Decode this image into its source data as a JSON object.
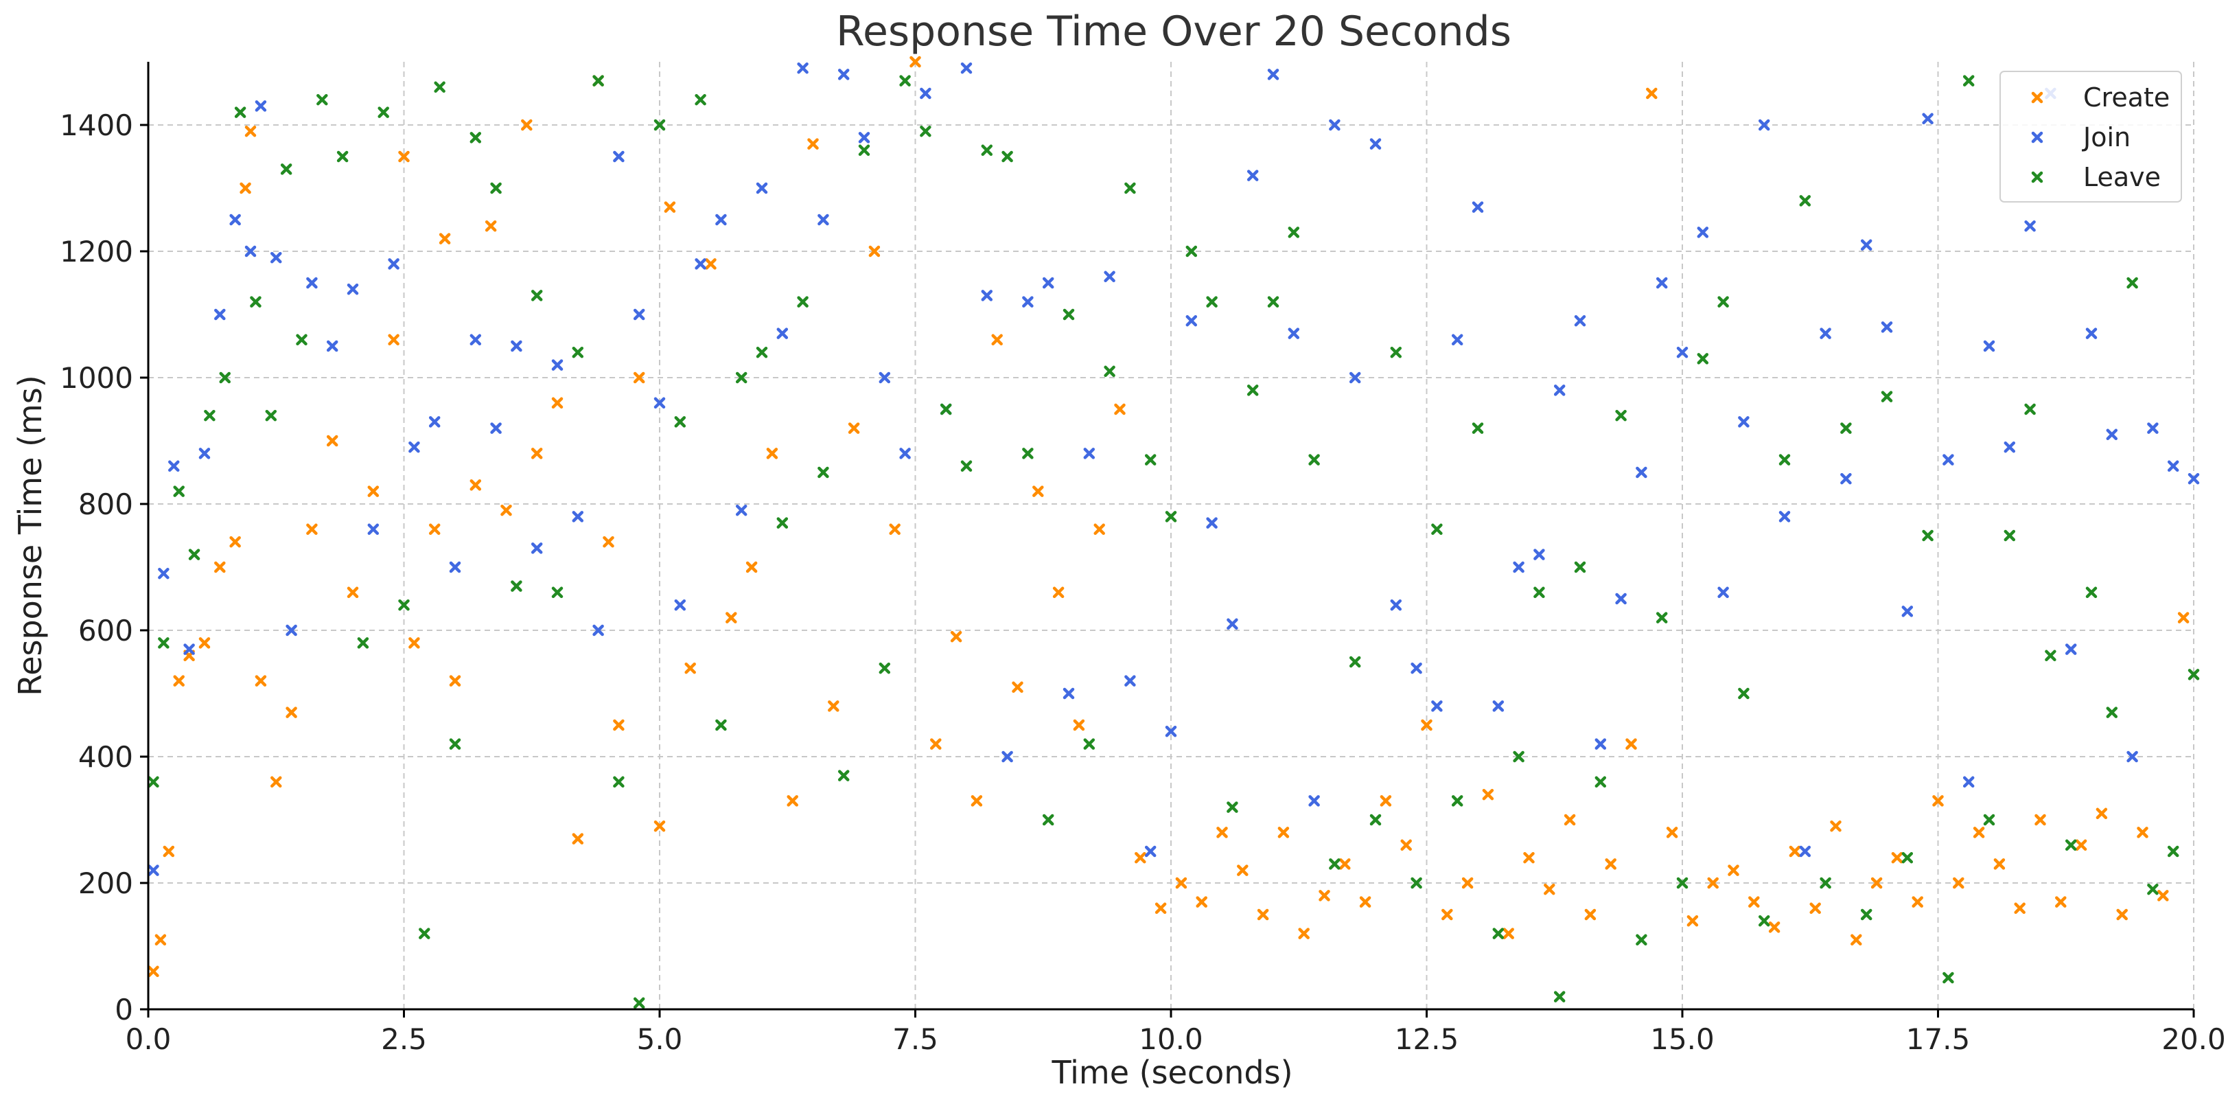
{
  "chart_data": {
    "type": "scatter",
    "title": "Response Time Over 20 Seconds",
    "xlabel": "Time (seconds)",
    "ylabel": "Response Time (ms)",
    "xlim": [
      0,
      20
    ],
    "ylim": [
      0,
      1500
    ],
    "xticks": [
      "0.0",
      "2.5",
      "5.0",
      "7.5",
      "10.0",
      "12.5",
      "15.0",
      "17.5",
      "20.0"
    ],
    "yticks": [
      "0",
      "200",
      "400",
      "600",
      "800",
      "1000",
      "1200",
      "1400"
    ],
    "grid": true,
    "legend_position": "top-right",
    "marker": "x",
    "series": [
      {
        "name": "Create",
        "color": "#ff8c00",
        "points": [
          [
            0.05,
            60
          ],
          [
            0.12,
            110
          ],
          [
            0.2,
            250
          ],
          [
            0.3,
            520
          ],
          [
            0.4,
            560
          ],
          [
            0.55,
            580
          ],
          [
            0.7,
            700
          ],
          [
            0.85,
            740
          ],
          [
            0.95,
            1300
          ],
          [
            1.0,
            1390
          ],
          [
            1.1,
            520
          ],
          [
            1.25,
            360
          ],
          [
            1.4,
            470
          ],
          [
            1.6,
            760
          ],
          [
            1.8,
            900
          ],
          [
            2.0,
            660
          ],
          [
            2.2,
            820
          ],
          [
            2.4,
            1060
          ],
          [
            2.5,
            1350
          ],
          [
            2.6,
            580
          ],
          [
            2.8,
            760
          ],
          [
            2.9,
            1220
          ],
          [
            3.0,
            520
          ],
          [
            3.2,
            830
          ],
          [
            3.35,
            1240
          ],
          [
            3.5,
            790
          ],
          [
            3.7,
            1400
          ],
          [
            3.8,
            880
          ],
          [
            4.0,
            960
          ],
          [
            4.2,
            270
          ],
          [
            4.4,
            1470
          ],
          [
            4.5,
            740
          ],
          [
            4.6,
            450
          ],
          [
            4.8,
            1000
          ],
          [
            5.0,
            290
          ],
          [
            5.1,
            1270
          ],
          [
            5.3,
            540
          ],
          [
            5.5,
            1180
          ],
          [
            5.7,
            620
          ],
          [
            5.9,
            700
          ],
          [
            6.1,
            880
          ],
          [
            6.3,
            330
          ],
          [
            6.5,
            1370
          ],
          [
            6.7,
            480
          ],
          [
            6.9,
            920
          ],
          [
            7.1,
            1200
          ],
          [
            7.3,
            760
          ],
          [
            7.5,
            1500
          ],
          [
            7.7,
            420
          ],
          [
            7.9,
            590
          ],
          [
            8.1,
            330
          ],
          [
            8.3,
            1060
          ],
          [
            8.5,
            510
          ],
          [
            8.7,
            820
          ],
          [
            8.9,
            660
          ],
          [
            9.1,
            450
          ],
          [
            9.3,
            760
          ],
          [
            9.5,
            950
          ],
          [
            9.7,
            240
          ],
          [
            9.9,
            160
          ],
          [
            10.1,
            200
          ],
          [
            10.3,
            170
          ],
          [
            10.5,
            280
          ],
          [
            10.7,
            220
          ],
          [
            10.9,
            150
          ],
          [
            11.1,
            280
          ],
          [
            11.3,
            120
          ],
          [
            11.5,
            180
          ],
          [
            11.7,
            230
          ],
          [
            11.9,
            170
          ],
          [
            12.1,
            330
          ],
          [
            12.3,
            260
          ],
          [
            12.5,
            450
          ],
          [
            12.7,
            150
          ],
          [
            12.9,
            200
          ],
          [
            13.1,
            340
          ],
          [
            13.3,
            120
          ],
          [
            13.5,
            240
          ],
          [
            13.7,
            190
          ],
          [
            13.9,
            300
          ],
          [
            14.1,
            150
          ],
          [
            14.3,
            230
          ],
          [
            14.5,
            420
          ],
          [
            14.7,
            1450
          ],
          [
            14.9,
            280
          ],
          [
            15.1,
            140
          ],
          [
            15.3,
            200
          ],
          [
            15.5,
            220
          ],
          [
            15.7,
            170
          ],
          [
            15.9,
            130
          ],
          [
            16.1,
            250
          ],
          [
            16.3,
            160
          ],
          [
            16.5,
            290
          ],
          [
            16.7,
            110
          ],
          [
            16.9,
            200
          ],
          [
            17.1,
            240
          ],
          [
            17.3,
            170
          ],
          [
            17.5,
            330
          ],
          [
            17.7,
            200
          ],
          [
            17.9,
            280
          ],
          [
            18.1,
            230
          ],
          [
            18.3,
            160
          ],
          [
            18.5,
            300
          ],
          [
            18.7,
            170
          ],
          [
            18.9,
            260
          ],
          [
            19.1,
            310
          ],
          [
            19.3,
            150
          ],
          [
            19.5,
            280
          ],
          [
            19.7,
            180
          ],
          [
            19.9,
            620
          ]
        ]
      },
      {
        "name": "Join",
        "color": "#4169e1",
        "points": [
          [
            0.05,
            220
          ],
          [
            0.15,
            690
          ],
          [
            0.25,
            860
          ],
          [
            0.4,
            570
          ],
          [
            0.55,
            880
          ],
          [
            0.7,
            1100
          ],
          [
            0.85,
            1250
          ],
          [
            1.0,
            1200
          ],
          [
            1.1,
            1430
          ],
          [
            1.25,
            1190
          ],
          [
            1.4,
            600
          ],
          [
            1.6,
            1150
          ],
          [
            1.8,
            1050
          ],
          [
            2.0,
            1140
          ],
          [
            2.2,
            760
          ],
          [
            2.4,
            1180
          ],
          [
            2.6,
            890
          ],
          [
            2.8,
            930
          ],
          [
            3.0,
            700
          ],
          [
            3.2,
            1060
          ],
          [
            3.4,
            920
          ],
          [
            3.6,
            1050
          ],
          [
            3.8,
            730
          ],
          [
            4.0,
            1020
          ],
          [
            4.2,
            780
          ],
          [
            4.4,
            600
          ],
          [
            4.6,
            1350
          ],
          [
            4.8,
            1100
          ],
          [
            5.0,
            960
          ],
          [
            5.2,
            640
          ],
          [
            5.4,
            1180
          ],
          [
            5.6,
            1250
          ],
          [
            5.8,
            790
          ],
          [
            6.0,
            1300
          ],
          [
            6.2,
            1070
          ],
          [
            6.4,
            1490
          ],
          [
            6.6,
            1250
          ],
          [
            6.8,
            1480
          ],
          [
            7.0,
            1380
          ],
          [
            7.2,
            1000
          ],
          [
            7.4,
            880
          ],
          [
            7.6,
            1450
          ],
          [
            7.8,
            950
          ],
          [
            8.0,
            1490
          ],
          [
            8.2,
            1130
          ],
          [
            8.4,
            400
          ],
          [
            8.6,
            1120
          ],
          [
            8.8,
            1150
          ],
          [
            9.0,
            500
          ],
          [
            9.2,
            880
          ],
          [
            9.4,
            1160
          ],
          [
            9.6,
            520
          ],
          [
            9.8,
            250
          ],
          [
            10.0,
            440
          ],
          [
            10.2,
            1090
          ],
          [
            10.4,
            770
          ],
          [
            10.6,
            610
          ],
          [
            10.8,
            1320
          ],
          [
            11.0,
            1480
          ],
          [
            11.2,
            1070
          ],
          [
            11.4,
            330
          ],
          [
            11.6,
            1400
          ],
          [
            11.8,
            1000
          ],
          [
            12.0,
            1370
          ],
          [
            12.2,
            640
          ],
          [
            12.4,
            540
          ],
          [
            12.6,
            480
          ],
          [
            12.8,
            1060
          ],
          [
            13.0,
            1270
          ],
          [
            13.2,
            480
          ],
          [
            13.4,
            700
          ],
          [
            13.6,
            720
          ],
          [
            13.8,
            980
          ],
          [
            14.0,
            1090
          ],
          [
            14.2,
            420
          ],
          [
            14.4,
            650
          ],
          [
            14.6,
            850
          ],
          [
            14.8,
            1150
          ],
          [
            15.0,
            1040
          ],
          [
            15.2,
            1230
          ],
          [
            15.4,
            660
          ],
          [
            15.6,
            930
          ],
          [
            15.8,
            1400
          ],
          [
            16.0,
            780
          ],
          [
            16.2,
            250
          ],
          [
            16.4,
            1070
          ],
          [
            16.6,
            840
          ],
          [
            16.8,
            1210
          ],
          [
            17.0,
            1080
          ],
          [
            17.2,
            630
          ],
          [
            17.4,
            1410
          ],
          [
            17.6,
            870
          ],
          [
            17.8,
            360
          ],
          [
            18.0,
            1050
          ],
          [
            18.2,
            890
          ],
          [
            18.4,
            1240
          ],
          [
            18.6,
            1450
          ],
          [
            18.8,
            570
          ],
          [
            19.0,
            1070
          ],
          [
            19.2,
            910
          ],
          [
            19.4,
            400
          ],
          [
            19.6,
            920
          ],
          [
            19.8,
            860
          ],
          [
            20.0,
            840
          ]
        ]
      },
      {
        "name": "Leave",
        "color": "#228b22",
        "points": [
          [
            0.05,
            360
          ],
          [
            0.15,
            580
          ],
          [
            0.3,
            820
          ],
          [
            0.45,
            720
          ],
          [
            0.6,
            940
          ],
          [
            0.75,
            1000
          ],
          [
            0.9,
            1420
          ],
          [
            1.05,
            1120
          ],
          [
            1.2,
            940
          ],
          [
            1.35,
            1330
          ],
          [
            1.5,
            1060
          ],
          [
            1.7,
            1440
          ],
          [
            1.9,
            1350
          ],
          [
            2.1,
            580
          ],
          [
            2.3,
            1420
          ],
          [
            2.5,
            640
          ],
          [
            2.7,
            120
          ],
          [
            2.85,
            1460
          ],
          [
            3.0,
            420
          ],
          [
            3.2,
            1380
          ],
          [
            3.4,
            1300
          ],
          [
            3.6,
            670
          ],
          [
            3.8,
            1130
          ],
          [
            4.0,
            660
          ],
          [
            4.2,
            1040
          ],
          [
            4.4,
            1470
          ],
          [
            4.6,
            360
          ],
          [
            4.8,
            10
          ],
          [
            5.0,
            1400
          ],
          [
            5.2,
            930
          ],
          [
            5.4,
            1440
          ],
          [
            5.6,
            450
          ],
          [
            5.8,
            1000
          ],
          [
            6.0,
            1040
          ],
          [
            6.2,
            770
          ],
          [
            6.4,
            1120
          ],
          [
            6.6,
            850
          ],
          [
            6.8,
            370
          ],
          [
            7.0,
            1360
          ],
          [
            7.2,
            540
          ],
          [
            7.4,
            1470
          ],
          [
            7.6,
            1390
          ],
          [
            7.8,
            950
          ],
          [
            8.0,
            860
          ],
          [
            8.2,
            1360
          ],
          [
            8.4,
            1350
          ],
          [
            8.6,
            880
          ],
          [
            8.8,
            300
          ],
          [
            9.0,
            1100
          ],
          [
            9.2,
            420
          ],
          [
            9.4,
            1010
          ],
          [
            9.6,
            1300
          ],
          [
            9.8,
            870
          ],
          [
            10.0,
            780
          ],
          [
            10.2,
            1200
          ],
          [
            10.4,
            1120
          ],
          [
            10.6,
            320
          ],
          [
            10.8,
            980
          ],
          [
            11.0,
            1120
          ],
          [
            11.2,
            1230
          ],
          [
            11.4,
            870
          ],
          [
            11.6,
            230
          ],
          [
            11.8,
            550
          ],
          [
            12.0,
            300
          ],
          [
            12.2,
            1040
          ],
          [
            12.4,
            200
          ],
          [
            12.6,
            760
          ],
          [
            12.8,
            330
          ],
          [
            13.0,
            920
          ],
          [
            13.2,
            120
          ],
          [
            13.4,
            400
          ],
          [
            13.6,
            660
          ],
          [
            13.8,
            20
          ],
          [
            14.0,
            700
          ],
          [
            14.2,
            360
          ],
          [
            14.4,
            940
          ],
          [
            14.6,
            110
          ],
          [
            14.8,
            620
          ],
          [
            15.0,
            200
          ],
          [
            15.2,
            1030
          ],
          [
            15.4,
            1120
          ],
          [
            15.6,
            500
          ],
          [
            15.8,
            140
          ],
          [
            16.0,
            870
          ],
          [
            16.2,
            1280
          ],
          [
            16.4,
            200
          ],
          [
            16.6,
            920
          ],
          [
            16.8,
            150
          ],
          [
            17.0,
            970
          ],
          [
            17.2,
            240
          ],
          [
            17.4,
            750
          ],
          [
            17.6,
            50
          ],
          [
            17.8,
            1470
          ],
          [
            18.0,
            300
          ],
          [
            18.2,
            750
          ],
          [
            18.4,
            950
          ],
          [
            18.6,
            560
          ],
          [
            18.8,
            260
          ],
          [
            19.0,
            660
          ],
          [
            19.2,
            470
          ],
          [
            19.4,
            1150
          ],
          [
            19.6,
            190
          ],
          [
            19.8,
            250
          ],
          [
            20.0,
            530
          ]
        ]
      }
    ]
  }
}
